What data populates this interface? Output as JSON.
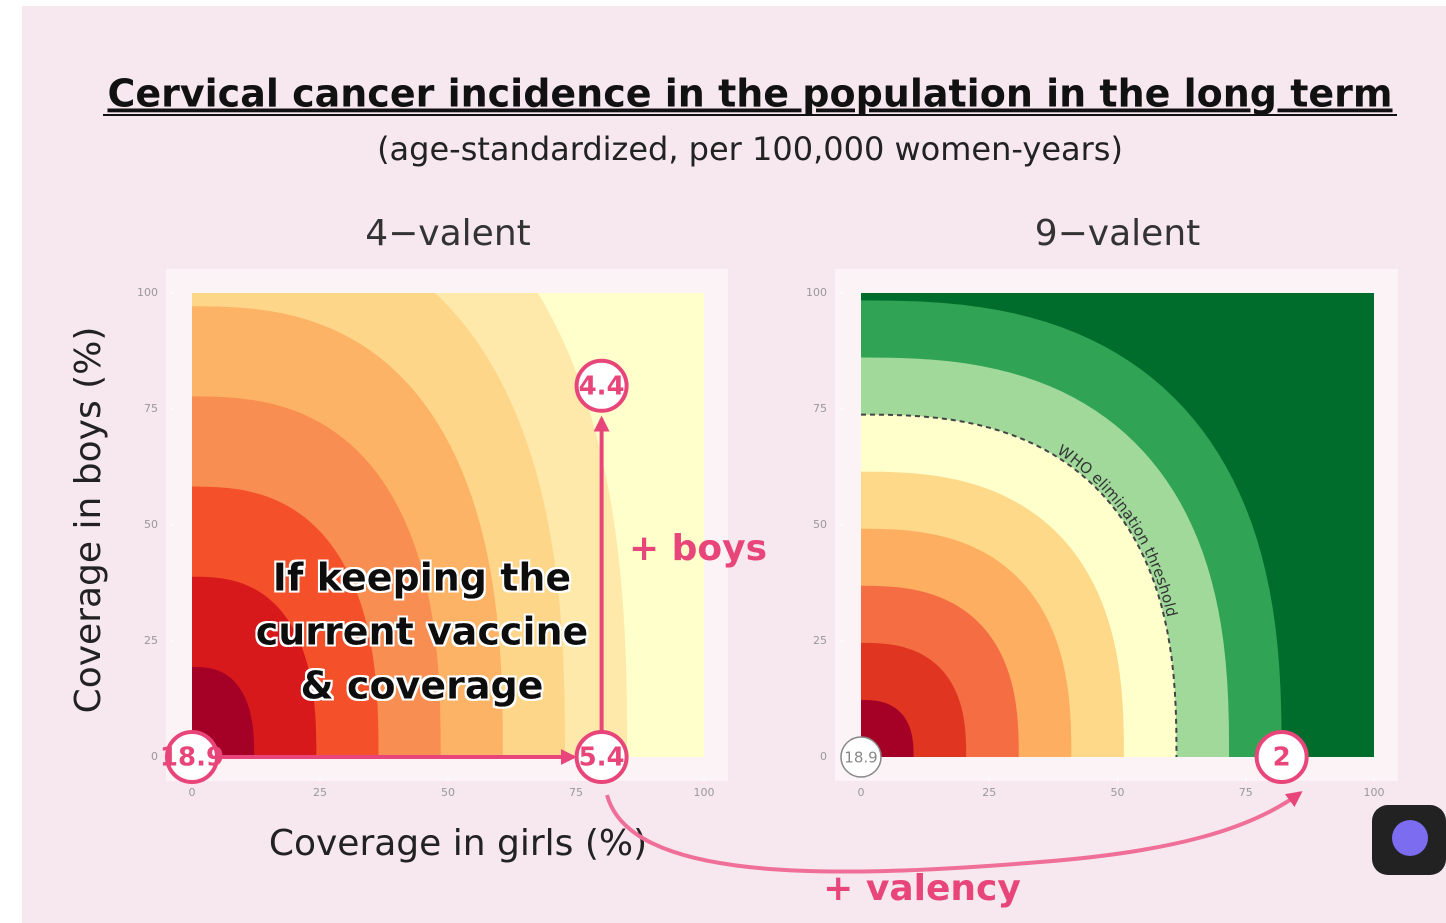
{
  "title": "Cervical cancer incidence in the population in the long term",
  "subtitle": "(age-standardized, per 100,000 women-years)",
  "chart_data": [
    {
      "type": "contour",
      "title": "4−valent",
      "xlabel": "Coverage in girls (%)",
      "ylabel": "Coverage in boys (%)",
      "xlim": [
        0,
        100
      ],
      "ylim": [
        0,
        100
      ],
      "xticks": [
        0,
        25,
        50,
        75,
        100
      ],
      "yticks": [
        0,
        25,
        50,
        75,
        100
      ],
      "colors": [
        "#a50026",
        "#d7191c",
        "#f4502a",
        "#f98e52",
        "#fdb365",
        "#fed68a",
        "#fee9aa"
      ],
      "background": "#ffffcc",
      "points": [
        {
          "x": 0,
          "y": 0,
          "value": 18.9,
          "color": "#e8457a"
        },
        {
          "x": 80,
          "y": 0,
          "value": 5.4,
          "color": "#e8457a"
        },
        {
          "x": 80,
          "y": 80,
          "value": 4.4,
          "color": "#e8457a"
        }
      ],
      "annotations": [
        "If keeping the",
        "current vaccine",
        "& coverage",
        "+ boys"
      ]
    },
    {
      "type": "contour",
      "title": "9−valent",
      "xlim": [
        0,
        100
      ],
      "ylim": [
        0,
        100
      ],
      "xticks": [
        0,
        25,
        50,
        75,
        100
      ],
      "yticks": [
        0,
        25,
        50,
        75,
        100
      ],
      "colors": [
        "#a50026",
        "#e03520",
        "#f46d43",
        "#fdae61",
        "#fed98a",
        "#ffffcc",
        "#a1d99b",
        "#31a354"
      ],
      "background": "#006d2c",
      "threshold_label": "WHO elimination threshold",
      "points": [
        {
          "x": 0,
          "y": 0,
          "value": 18.9,
          "color": "#888888"
        },
        {
          "x": 82,
          "y": 0,
          "value": 2,
          "color": "#e8457a"
        }
      ],
      "annotations": [
        "+ valency"
      ]
    }
  ]
}
